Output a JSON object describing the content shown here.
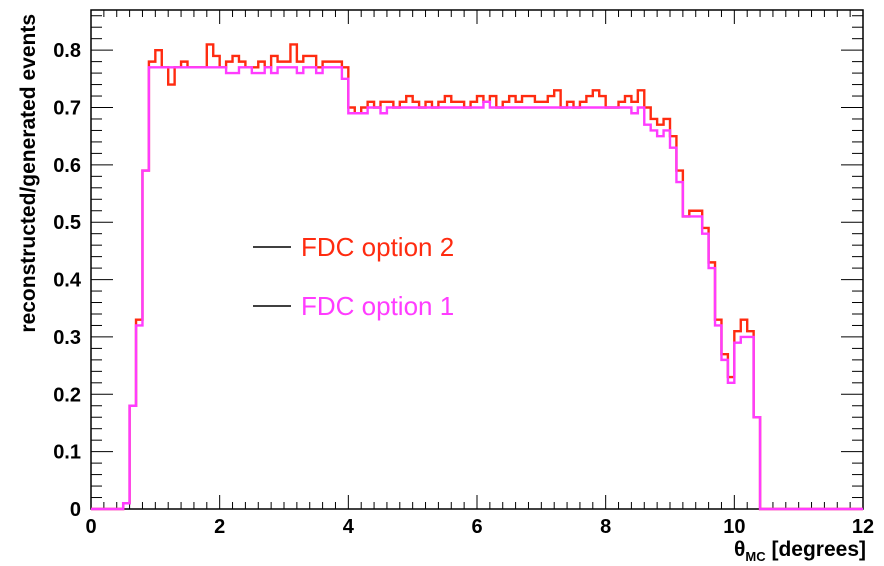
{
  "chart_data": {
    "type": "line",
    "xlabel": "θMC [degrees]",
    "xlabel_parts": {
      "symbol": "θ",
      "subscript": "MC",
      "unit": " [degrees]"
    },
    "ylabel": "reconstructed/generated events",
    "xlim": [
      0,
      12
    ],
    "ylim": [
      0,
      0.87
    ],
    "x_ticks": [
      "0",
      "2",
      "4",
      "6",
      "8",
      "10",
      "12"
    ],
    "y_ticks": [
      "0",
      "0.1",
      "0.2",
      "0.3",
      "0.4",
      "0.5",
      "0.6",
      "0.7",
      "0.8"
    ],
    "grid": false,
    "legend_position": "middle-left",
    "bin_edges_start": 0,
    "bin_width": 0.1,
    "series": [
      {
        "name": "FDC option 2",
        "color": "#ff2b10",
        "values": [
          0,
          0,
          0,
          0,
          0,
          0.01,
          0.18,
          0.33,
          0.59,
          0.78,
          0.8,
          0.77,
          0.74,
          0.77,
          0.78,
          0.77,
          0.77,
          0.77,
          0.81,
          0.79,
          0.77,
          0.78,
          0.79,
          0.78,
          0.77,
          0.77,
          0.78,
          0.77,
          0.79,
          0.78,
          0.78,
          0.81,
          0.78,
          0.79,
          0.79,
          0.77,
          0.78,
          0.78,
          0.78,
          0.77,
          0.7,
          0.69,
          0.7,
          0.71,
          0.7,
          0.71,
          0.71,
          0.7,
          0.71,
          0.72,
          0.71,
          0.7,
          0.71,
          0.7,
          0.71,
          0.72,
          0.71,
          0.71,
          0.7,
          0.71,
          0.72,
          0.71,
          0.72,
          0.7,
          0.71,
          0.72,
          0.71,
          0.72,
          0.72,
          0.71,
          0.71,
          0.72,
          0.73,
          0.7,
          0.71,
          0.7,
          0.71,
          0.72,
          0.73,
          0.72,
          0.7,
          0.7,
          0.71,
          0.72,
          0.71,
          0.73,
          0.7,
          0.68,
          0.67,
          0.68,
          0.65,
          0.59,
          0.51,
          0.52,
          0.52,
          0.49,
          0.43,
          0.33,
          0.27,
          0.23,
          0.31,
          0.33,
          0.31,
          0.16,
          0,
          0,
          0,
          0,
          0,
          0,
          0,
          0,
          0,
          0,
          0,
          0,
          0,
          0,
          0,
          0
        ],
        "values_source": "estimated from plot"
      },
      {
        "name": "FDC option 1",
        "color": "#ff3cff",
        "values": [
          0,
          0,
          0,
          0,
          0,
          0.01,
          0.18,
          0.32,
          0.59,
          0.77,
          0.77,
          0.77,
          0.77,
          0.77,
          0.77,
          0.77,
          0.77,
          0.77,
          0.77,
          0.77,
          0.77,
          0.76,
          0.76,
          0.77,
          0.77,
          0.76,
          0.76,
          0.77,
          0.76,
          0.77,
          0.77,
          0.77,
          0.76,
          0.77,
          0.77,
          0.76,
          0.77,
          0.77,
          0.77,
          0.75,
          0.69,
          0.69,
          0.69,
          0.7,
          0.7,
          0.69,
          0.7,
          0.7,
          0.7,
          0.7,
          0.7,
          0.7,
          0.7,
          0.7,
          0.7,
          0.7,
          0.7,
          0.7,
          0.7,
          0.7,
          0.7,
          0.71,
          0.7,
          0.7,
          0.7,
          0.7,
          0.7,
          0.7,
          0.7,
          0.7,
          0.7,
          0.7,
          0.7,
          0.7,
          0.7,
          0.7,
          0.7,
          0.7,
          0.7,
          0.7,
          0.7,
          0.7,
          0.7,
          0.7,
          0.69,
          0.7,
          0.67,
          0.66,
          0.65,
          0.66,
          0.63,
          0.57,
          0.51,
          0.51,
          0.51,
          0.48,
          0.42,
          0.32,
          0.26,
          0.22,
          0.29,
          0.3,
          0.3,
          0.16,
          0,
          0,
          0,
          0,
          0,
          0,
          0,
          0,
          0,
          0,
          0,
          0,
          0,
          0,
          0,
          0
        ],
        "values_source": "estimated from plot"
      }
    ]
  }
}
